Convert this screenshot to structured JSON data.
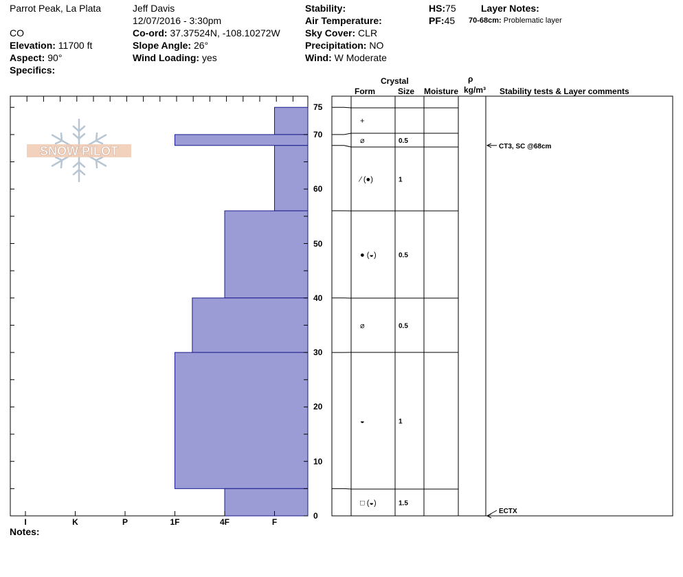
{
  "header": {
    "location": "Parrot Peak, La Plata",
    "state": "CO",
    "elevation_label": "Elevation:",
    "elevation_value": "11700 ft",
    "aspect_label": "Aspect:",
    "aspect_value": "90°",
    "specifics_label": "Specifics:",
    "observer": "Jeff Davis",
    "datetime": "12/07/2016 - 3:30pm",
    "coord_label": "Co-ord:",
    "coord_value": "37.37524N, -108.10272W",
    "slope_label": "Slope Angle:",
    "slope_value": "26°",
    "wind_loading_label": "Wind Loading:",
    "wind_loading_value": "yes",
    "stability_label": "Stability:",
    "air_temp_label": "Air Temperature:",
    "sky_label": "Sky Cover:",
    "sky_value": "CLR",
    "precip_label": "Precipitation:",
    "precip_value": "NO",
    "wind_label": "Wind:",
    "wind_value": "W Moderate",
    "hs_label": "HS:",
    "hs_value": "75",
    "pf_label": "PF:",
    "pf_value": "45",
    "layer_notes_label": "Layer Notes:",
    "layer_note_range": "70-68cm:",
    "layer_note_text": "Problematic layer"
  },
  "logo_text": "SNOW PILOT",
  "notes_label": "Notes:",
  "table_headers": {
    "crystal": "Crystal",
    "form": "Form",
    "size": "Size",
    "moisture": "Moisture",
    "rho": "ρ",
    "density_unit": "kg/m³",
    "comments": "Stability tests & Layer comments"
  },
  "colors": {
    "bar_fill": "#9b9bd6",
    "bar_stroke": "#1a1a8c"
  },
  "chart_data": {
    "type": "bar",
    "orientation": "horizontal",
    "ylabel": "",
    "xlabel": "",
    "ylim": [
      0,
      75
    ],
    "yticks": [
      0,
      10,
      20,
      30,
      40,
      50,
      60,
      70,
      75
    ],
    "hardness_scale": [
      "I",
      "K",
      "P",
      "1F",
      "4F",
      "F"
    ],
    "layers": [
      {
        "top": 75,
        "bottom": 70,
        "hardness": "F"
      },
      {
        "top": 70,
        "bottom": 68,
        "hardness": "1F"
      },
      {
        "top": 68,
        "bottom": 56,
        "hardness": "F"
      },
      {
        "top": 56,
        "bottom": 40,
        "hardness": "4F"
      },
      {
        "top": 40,
        "bottom": 30,
        "hardness": "1F-"
      },
      {
        "top": 30,
        "bottom": 5,
        "hardness": "1F"
      },
      {
        "top": 5,
        "bottom": 0,
        "hardness": "4F"
      }
    ],
    "hardness_value": {
      "F": 6,
      "4F": 5,
      "1F": 4,
      "1F-": 4.35
    },
    "table_rows": [
      {
        "top": 75,
        "bottom": 70,
        "form": "+",
        "size": ""
      },
      {
        "top": 70,
        "bottom": 68,
        "form": "⌀",
        "size": "0.5"
      },
      {
        "top": 68,
        "bottom": 56,
        "form": "∕ (●)",
        "size": "1"
      },
      {
        "top": 56,
        "bottom": 40,
        "form": "● (◒)",
        "size": "0.5"
      },
      {
        "top": 40,
        "bottom": 30,
        "form": "⌀",
        "size": "0.5"
      },
      {
        "top": 30,
        "bottom": 5,
        "form": "◒",
        "size": "1"
      },
      {
        "top": 5,
        "bottom": 0,
        "form": "□ (◒)",
        "size": "1.5"
      }
    ],
    "stability_tests": [
      {
        "depth": 68,
        "text": "CT3, SC @68cm"
      },
      {
        "depth": 0,
        "text": "ECTX"
      }
    ]
  }
}
